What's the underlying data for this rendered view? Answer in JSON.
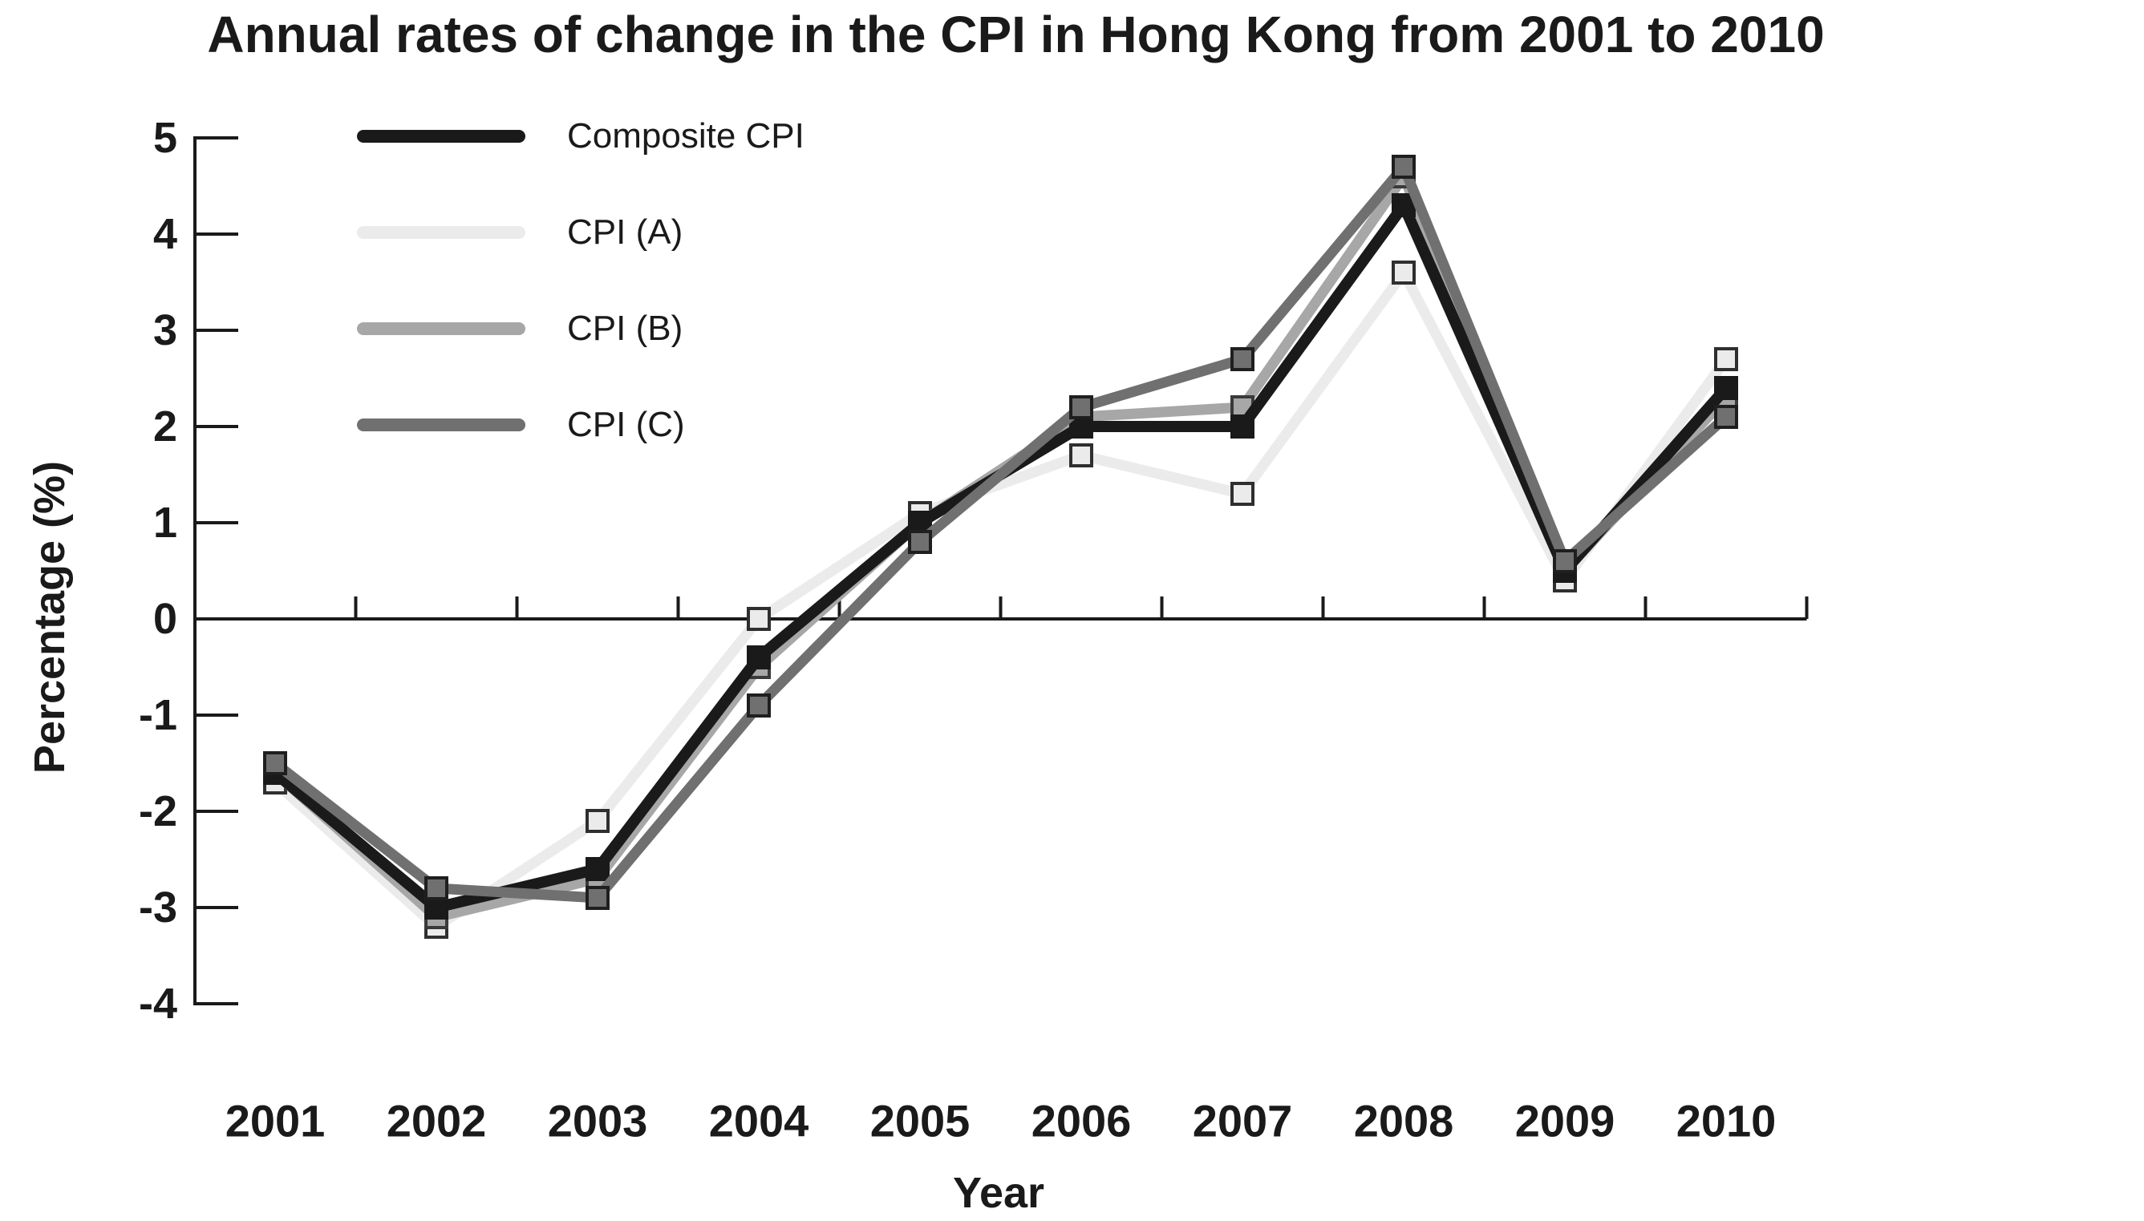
{
  "chart_data": {
    "type": "line",
    "title": "Annual rates of change in the CPI in Hong Kong from 2001 to 2010",
    "xlabel": "Year",
    "ylabel": "Percentage (%)",
    "categories": [
      "2001",
      "2002",
      "2003",
      "2004",
      "2005",
      "2006",
      "2007",
      "2008",
      "2009",
      "2010"
    ],
    "y_ticks": [
      5,
      4,
      3,
      2,
      1,
      0,
      -1,
      -2,
      -3,
      -4
    ],
    "ylim": [
      -4,
      5
    ],
    "grid": false,
    "legend_position": "upper-left",
    "axis_color": "#1a1a1a",
    "background_color": "#ffffff",
    "series": [
      {
        "name": "Composite CPI",
        "color": "#1a1a1a",
        "marker_border": "#1a1a1a",
        "marker": "square",
        "values": [
          -1.6,
          -3.0,
          -2.6,
          -0.4,
          1.0,
          2.0,
          2.0,
          4.3,
          0.5,
          2.4
        ]
      },
      {
        "name": "CPI (A)",
        "color": "#ebebeb",
        "marker_border": "#2f2f2f",
        "marker": "square",
        "values": [
          -1.7,
          -3.2,
          -2.1,
          0.0,
          1.1,
          1.7,
          1.3,
          3.6,
          0.4,
          2.7
        ]
      },
      {
        "name": "CPI (B)",
        "color": "#a7a7a7",
        "marker_border": "#3a3a3a",
        "marker": "square",
        "values": [
          -1.6,
          -3.1,
          -2.7,
          -0.5,
          1.0,
          2.1,
          2.2,
          4.6,
          0.5,
          2.3
        ]
      },
      {
        "name": "CPI (C)",
        "color": "#707070",
        "marker_border": "#1f1f1f",
        "marker": "square",
        "values": [
          -1.5,
          -2.8,
          -2.9,
          -0.9,
          0.8,
          2.2,
          2.7,
          4.7,
          0.6,
          2.1
        ]
      }
    ]
  }
}
